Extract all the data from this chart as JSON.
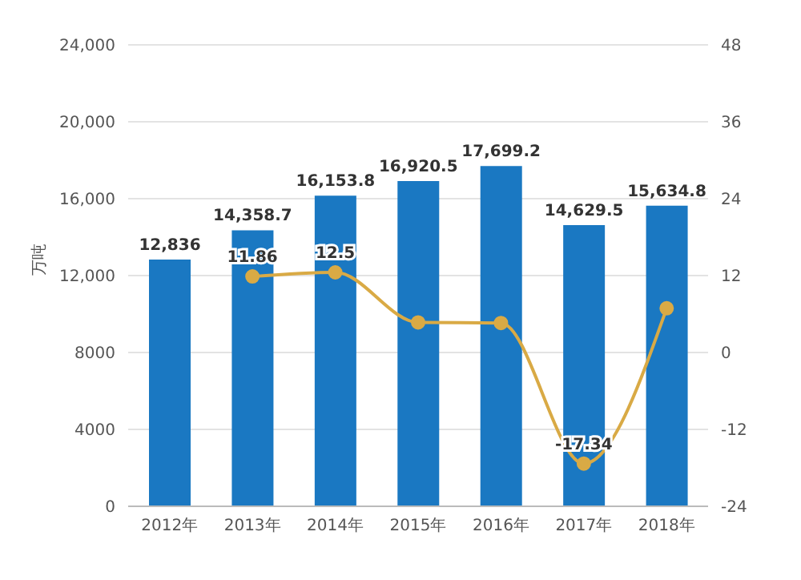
{
  "chart_data": {
    "type": "bar",
    "ylabel": "万吨",
    "categories": [
      "2012年",
      "2013年",
      "2014年",
      "2015年",
      "2016年",
      "2017年",
      "2018年"
    ],
    "series": [
      {
        "color": "#1a78c2",
        "values": [
          12836,
          14358.7,
          16153.8,
          16920.5,
          17699.2,
          14629.5,
          15634.8
        ],
        "value_labels": [
          "12,836",
          "14,358.7",
          "16,153.8",
          "16,920.5",
          "17,699.2",
          "14,629.5",
          "15,634.8"
        ]
      },
      {
        "type": "line",
        "axis": "y2",
        "color": "#d9aa45",
        "values": [
          null,
          11.86,
          12.5,
          4.7,
          4.6,
          -17.34,
          6.9
        ],
        "value_labels": [
          null,
          "11.86",
          "12.5",
          null,
          null,
          "-17.34",
          null
        ]
      }
    ],
    "ylim": [
      0,
      24000
    ],
    "yticks": [
      0,
      {
        "value": 4000,
        "label": "4000"
      },
      {
        "value": 8000,
        "label": "8000"
      },
      {
        "value": 12000,
        "label": "12,000"
      },
      {
        "value": 16000,
        "label": "16,000"
      },
      {
        "value": 20000,
        "label": "20,000"
      },
      {
        "value": 24000,
        "label": "24,000"
      }
    ],
    "y2lim": [
      -24,
      48
    ],
    "y2ticks": [
      -24,
      -12,
      0,
      12,
      24,
      36,
      48
    ],
    "grid": "y",
    "marker": "circle"
  }
}
